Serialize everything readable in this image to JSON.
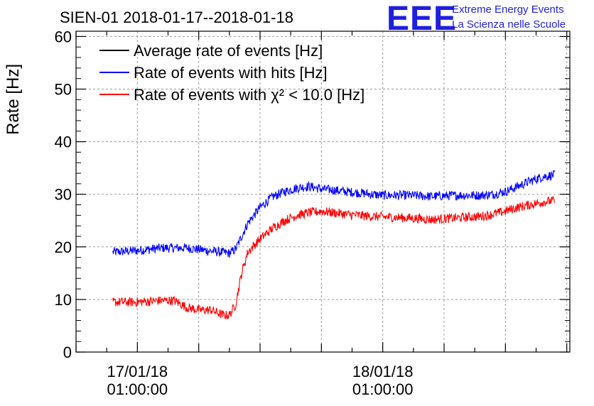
{
  "chart_data": {
    "type": "line",
    "title": "SIEN-01 2018-01-17--2018-01-18",
    "ylabel": "Rate [Hz]",
    "xlabel": "",
    "ylim": [
      0,
      61
    ],
    "yticks": [
      0,
      10,
      20,
      30,
      40,
      50,
      60
    ],
    "xlim_hours": [
      -10,
      70.5
    ],
    "x_labeled_ticks": [
      {
        "hour": 0,
        "line1": "17/01/18",
        "line2": "01:00:00"
      },
      {
        "hour": 40,
        "line1": "18/01/18",
        "line2": "01:00:00"
      }
    ],
    "x_minor_ticks_hours": [
      -10,
      -5,
      5,
      10,
      15,
      20,
      25,
      30,
      35,
      45,
      50,
      55,
      60,
      65,
      70
    ],
    "x_major_ticks_hours": [
      -10,
      0,
      10,
      20,
      30,
      40,
      50,
      60,
      70
    ],
    "grid": true,
    "legend_position": "top-left",
    "series": [
      {
        "name": "Average rate of events [Hz]",
        "color": "#000000",
        "x_hours": [],
        "values": []
      },
      {
        "name": "Rate of events with hits [Hz]",
        "color": "#0000ff",
        "x_hours": [
          -4,
          0,
          4,
          8,
          12,
          15,
          16,
          17,
          18,
          20,
          22,
          24,
          26,
          28,
          30,
          32,
          34,
          36,
          38,
          40,
          44,
          48,
          52,
          56,
          58,
          60,
          62,
          64,
          66,
          68
        ],
        "values": [
          19,
          19.3,
          19.8,
          19.8,
          19.2,
          18.8,
          19.5,
          22,
          24.5,
          27.5,
          29.5,
          30.5,
          31.2,
          31.5,
          31,
          30.8,
          30.5,
          30.3,
          30,
          29.8,
          29.8,
          29.6,
          29.8,
          29.8,
          30,
          30.5,
          31.5,
          32.5,
          33.3,
          33.7
        ]
      },
      {
        "name": "Rate of events with χ² < 10.0 [Hz]",
        "color": "#ff0000",
        "x_hours": [
          -4,
          0,
          4,
          6,
          8,
          10,
          12,
          14,
          15,
          16,
          17,
          18,
          20,
          22,
          24,
          26,
          28,
          30,
          32,
          34,
          36,
          38,
          40,
          44,
          48,
          52,
          56,
          58,
          60,
          62,
          64,
          66,
          68
        ],
        "values": [
          9.5,
          9.5,
          9.8,
          9.8,
          8.5,
          8,
          8,
          7,
          7,
          9,
          15,
          19,
          21.5,
          23.5,
          25,
          26,
          26.5,
          26.8,
          26.5,
          26.2,
          26,
          25.8,
          25.7,
          25.5,
          25.2,
          25.5,
          25.8,
          26.2,
          26.8,
          27.5,
          28,
          28.5,
          28.8
        ]
      }
    ]
  },
  "logo": {
    "mark": "EEE",
    "line1": "Extreme Energy Events",
    "line2": "La Scienza nelle Scuole"
  }
}
